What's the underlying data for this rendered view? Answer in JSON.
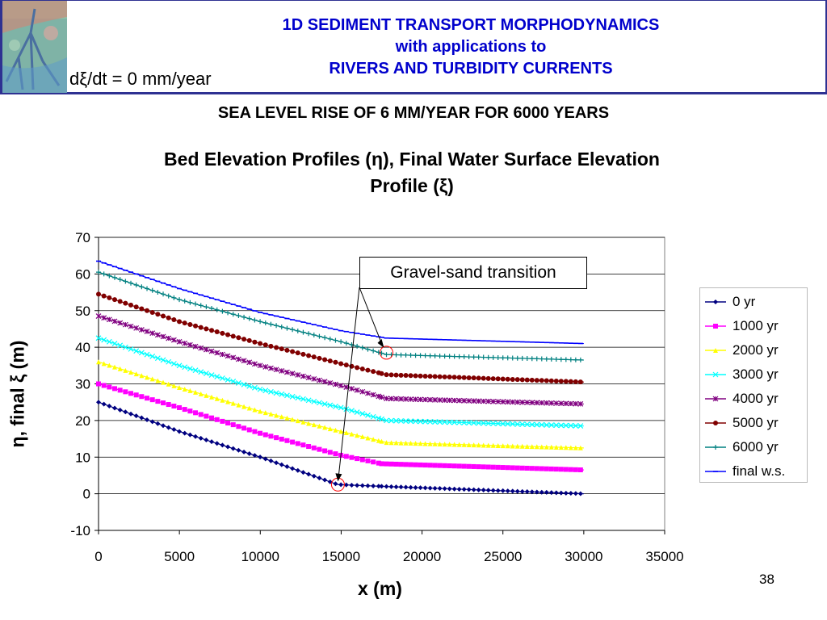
{
  "header": {
    "title_line1": "1D SEDIMENT TRANSPORT MORPHODYNAMICS",
    "title_line2": "with applications to",
    "title_line3": "RIVERS AND TURBIDITY CURRENTS"
  },
  "overlay_label": "dξ/dt = 0 mm/year",
  "subtitle": "SEA LEVEL RISE OF 6 MM/YEAR FOR 6000 YEARS",
  "page_number": "38",
  "colors": {
    "header_border": "#2e3192",
    "header_text": "#0000cc"
  },
  "chart_data": {
    "type": "line",
    "title_line1": "Bed Elevation Profiles (η), Final Water Surface Elevation",
    "title_line2": "Profile (ξ)",
    "xlabel": "x (m)",
    "ylabel": "η, final ξ (m)",
    "xlim": [
      0,
      35000
    ],
    "ylim": [
      -10,
      70
    ],
    "xticks": [
      "0",
      "5000",
      "10000",
      "15000",
      "20000",
      "25000",
      "30000",
      "35000"
    ],
    "yticks": [
      "-10",
      "0",
      "10",
      "20",
      "30",
      "40",
      "50",
      "60",
      "70"
    ],
    "grid": "horizontal",
    "legend_position": "right",
    "annotation": "Gravel-sand transition",
    "series": [
      {
        "name": "0 yr",
        "color": "#000080",
        "marker": "diamond",
        "points": [
          [
            0,
            25
          ],
          [
            5000,
            17
          ],
          [
            10000,
            10
          ],
          [
            14800,
            2.5
          ],
          [
            17700,
            2
          ],
          [
            30000,
            0
          ]
        ]
      },
      {
        "name": "1000 yr",
        "color": "#ff00ff",
        "marker": "square",
        "points": [
          [
            0,
            30
          ],
          [
            5000,
            23.5
          ],
          [
            10000,
            16.5
          ],
          [
            15000,
            10.5
          ],
          [
            17500,
            8.2
          ],
          [
            30000,
            6.5
          ]
        ]
      },
      {
        "name": "2000 yr",
        "color": "#ffff00",
        "marker": "triangle",
        "points": [
          [
            0,
            36
          ],
          [
            5000,
            29
          ],
          [
            10000,
            22.5
          ],
          [
            15000,
            17
          ],
          [
            17800,
            14
          ],
          [
            30000,
            12.5
          ]
        ]
      },
      {
        "name": "3000 yr",
        "color": "#00ffff",
        "marker": "x",
        "points": [
          [
            0,
            42.5
          ],
          [
            5000,
            35
          ],
          [
            10000,
            28.5
          ],
          [
            15000,
            23.5
          ],
          [
            17800,
            20
          ],
          [
            30000,
            18.5
          ]
        ]
      },
      {
        "name": "4000 yr",
        "color": "#800080",
        "marker": "star",
        "points": [
          [
            0,
            48.5
          ],
          [
            5000,
            41.5
          ],
          [
            10000,
            35
          ],
          [
            15000,
            29.5
          ],
          [
            17800,
            26
          ],
          [
            30000,
            24.5
          ]
        ]
      },
      {
        "name": "5000 yr",
        "color": "#800000",
        "marker": "circle",
        "points": [
          [
            0,
            54.5
          ],
          [
            5000,
            47
          ],
          [
            10000,
            41
          ],
          [
            15000,
            35.5
          ],
          [
            17800,
            32.5
          ],
          [
            30000,
            30.5
          ]
        ]
      },
      {
        "name": "6000 yr",
        "color": "#008080",
        "marker": "plus",
        "points": [
          [
            0,
            60.5
          ],
          [
            5000,
            53
          ],
          [
            10000,
            47
          ],
          [
            15000,
            41.5
          ],
          [
            17800,
            38
          ],
          [
            30000,
            36.5
          ]
        ]
      },
      {
        "name": "final w.s.",
        "color": "#0000ff",
        "marker": "dash",
        "points": [
          [
            0,
            63.5
          ],
          [
            5000,
            56
          ],
          [
            10000,
            49.5
          ],
          [
            15000,
            44.5
          ],
          [
            17800,
            42.5
          ],
          [
            30000,
            41
          ]
        ]
      }
    ]
  }
}
